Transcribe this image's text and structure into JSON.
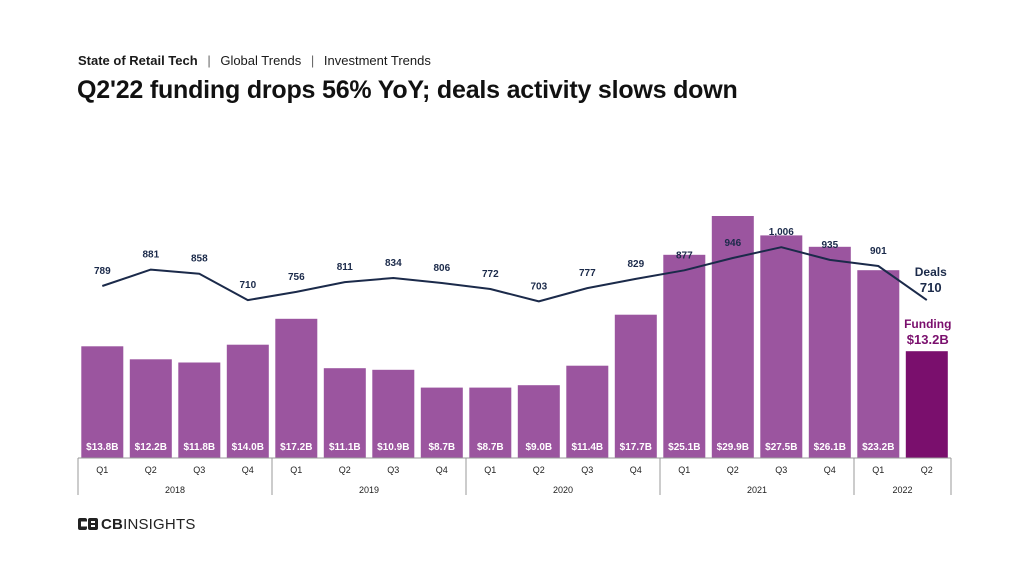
{
  "header": {
    "breadcrumb": [
      "State of Retail Tech",
      "Global Trends",
      "Investment Trends"
    ],
    "separator": "|",
    "title": "Q2'22 funding drops 56% YoY; deals activity slows down"
  },
  "chart_data": {
    "type": "bar",
    "categories": [
      "Q1",
      "Q2",
      "Q3",
      "Q4",
      "Q1",
      "Q2",
      "Q3",
      "Q4",
      "Q1",
      "Q2",
      "Q3",
      "Q4",
      "Q1",
      "Q2",
      "Q3",
      "Q4",
      "Q1",
      "Q2"
    ],
    "years": [
      {
        "label": "2018",
        "count": 4
      },
      {
        "label": "2019",
        "count": 4
      },
      {
        "label": "2020",
        "count": 4
      },
      {
        "label": "2021",
        "count": 4
      },
      {
        "label": "2022",
        "count": 2
      }
    ],
    "series": [
      {
        "name": "Funding",
        "type": "bar",
        "unit": "$B",
        "values": [
          13.8,
          12.2,
          11.8,
          14.0,
          17.2,
          11.1,
          10.9,
          8.7,
          8.7,
          9.0,
          11.4,
          17.7,
          25.1,
          29.9,
          27.5,
          26.1,
          23.2,
          13.2
        ],
        "labels": [
          "$13.8B",
          "$12.2B",
          "$11.8B",
          "$14.0B",
          "$17.2B",
          "$11.1B",
          "$10.9B",
          "$8.7B",
          "$8.7B",
          "$9.0B",
          "$11.4B",
          "$17.7B",
          "$25.1B",
          "$29.9B",
          "$27.5B",
          "$26.1B",
          "$23.2B",
          ""
        ],
        "callout": {
          "name": "Funding",
          "value": "$13.2B"
        }
      },
      {
        "name": "Deals",
        "type": "line",
        "values": [
          789,
          881,
          858,
          710,
          756,
          811,
          834,
          806,
          772,
          703,
          777,
          829,
          877,
          946,
          1006,
          935,
          901,
          710
        ],
        "labels": [
          "789",
          "881",
          "858",
          "710",
          "756",
          "811",
          "834",
          "806",
          "772",
          "703",
          "777",
          "829",
          "877",
          "946",
          "1,006",
          "935",
          "901",
          ""
        ],
        "callout": {
          "name": "Deals",
          "value": "710"
        }
      }
    ],
    "colors": {
      "bar": "#9b559f",
      "bar_highlight": "#7a0f6d",
      "line": "#1b2a4a",
      "funding_callout": "#7a0f6d",
      "deals_callout": "#1b2a4a"
    },
    "grid": false,
    "legend": "direct-labels-right"
  },
  "footer": {
    "logo_bold": "CB",
    "logo_rest": "INSIGHTS",
    "logo_icon": "cb-insights-logo-icon"
  }
}
